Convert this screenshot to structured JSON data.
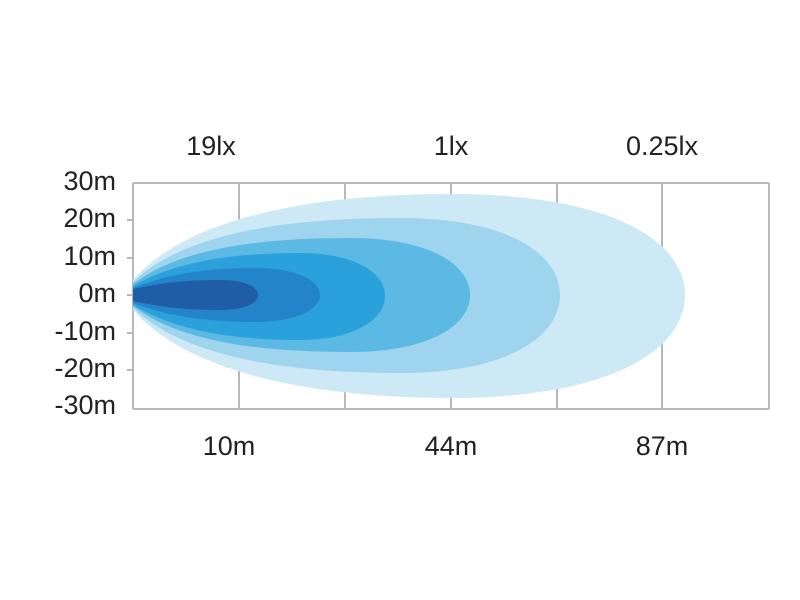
{
  "top_labels": [
    "19lx",
    "1lx",
    "0.25lx"
  ],
  "y_axis_labels": [
    "30m",
    "20m",
    "10m",
    "0m",
    "-10m",
    "-20m",
    "-30m"
  ],
  "bottom_labels": [
    "10m",
    "44m",
    "87m"
  ]
}
